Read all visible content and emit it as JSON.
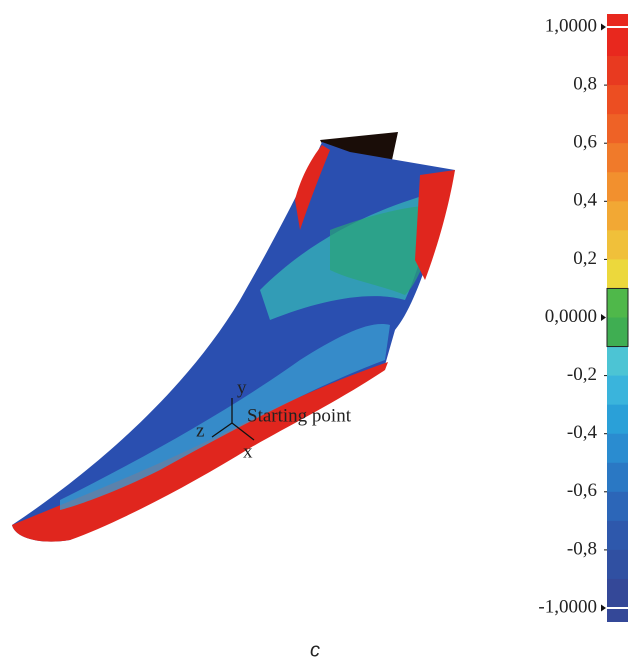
{
  "figure": {
    "annotation": "Starting point",
    "axes": {
      "x": "x",
      "y": "y",
      "z": "z"
    },
    "caption": "c",
    "colorbar": {
      "ticks": [
        {
          "value": 1,
          "label": "1,0000"
        },
        {
          "value": 0.8,
          "label": "0,8"
        },
        {
          "value": 0.6,
          "label": "0,6"
        },
        {
          "value": 0.4,
          "label": "0,4"
        },
        {
          "value": 0.2,
          "label": "0,2"
        },
        {
          "value": 0,
          "label": "0,0000"
        },
        {
          "value": -0.2,
          "label": "-0,2"
        },
        {
          "value": -0.4,
          "label": "-0,4"
        },
        {
          "value": -0.6,
          "label": "-0,6"
        },
        {
          "value": -0.8,
          "label": "-0,8"
        },
        {
          "value": -1,
          "label": "-1,0000"
        }
      ]
    }
  }
}
